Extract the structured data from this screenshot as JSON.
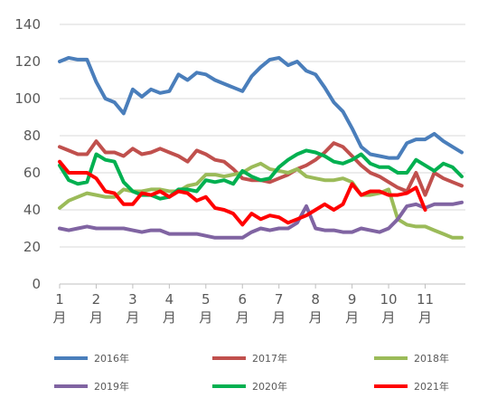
{
  "chart_data": {
    "type": "line",
    "ylim": [
      0,
      140
    ],
    "y_ticks": [
      0,
      20,
      40,
      60,
      80,
      100,
      120,
      140
    ],
    "x_range": [
      1,
      12.1
    ],
    "grid": "horizontal",
    "legend_position": "bottom",
    "month_ticks": [
      {
        "x": 1,
        "label": "1月"
      },
      {
        "x": 2,
        "label": "2月"
      },
      {
        "x": 3,
        "label": "3月"
      },
      {
        "x": 4,
        "label": "4月"
      },
      {
        "x": 5,
        "label": "5月"
      },
      {
        "x": 6,
        "label": "6月"
      },
      {
        "x": 7,
        "label": "7月"
      },
      {
        "x": 8,
        "label": "8月"
      },
      {
        "x": 9,
        "label": "9月"
      },
      {
        "x": 10,
        "label": "10月"
      },
      {
        "x": 11,
        "label": "11月"
      }
    ],
    "series": [
      {
        "name": "2016年",
        "color": "#4a7ebb",
        "x": [
          1.0,
          1.25,
          1.5,
          1.75,
          2.0,
          2.25,
          2.5,
          2.75,
          3.0,
          3.25,
          3.5,
          3.75,
          4.0,
          4.25,
          4.5,
          4.75,
          5.0,
          5.25,
          5.5,
          5.75,
          6.0,
          6.25,
          6.5,
          6.75,
          7.0,
          7.25,
          7.5,
          7.75,
          8.0,
          8.25,
          8.5,
          8.75,
          9.0,
          9.25,
          9.5,
          9.75,
          10.0,
          10.25,
          10.5,
          10.75,
          11.0,
          11.25,
          11.5,
          11.75,
          12.0
        ],
        "y": [
          120,
          122,
          121,
          121,
          109,
          100,
          98,
          92,
          105,
          101,
          105,
          103,
          104,
          113,
          110,
          114,
          113,
          110,
          108,
          106,
          104,
          112,
          117,
          121,
          122,
          118,
          120,
          115,
          113,
          106,
          98,
          93,
          84,
          74,
          70,
          69,
          68,
          68,
          76,
          78,
          78,
          81,
          77,
          74,
          71
        ]
      },
      {
        "name": "2017年",
        "color": "#c0504d",
        "x": [
          1.0,
          1.25,
          1.5,
          1.75,
          2.0,
          2.25,
          2.5,
          2.75,
          3.0,
          3.25,
          3.5,
          3.75,
          4.0,
          4.25,
          4.5,
          4.75,
          5.0,
          5.25,
          5.5,
          5.75,
          6.0,
          6.25,
          6.5,
          6.75,
          7.0,
          7.25,
          7.5,
          7.75,
          8.0,
          8.25,
          8.5,
          8.75,
          9.0,
          9.25,
          9.5,
          9.75,
          10.0,
          10.25,
          10.5,
          10.75,
          11.0,
          11.25,
          11.5,
          11.75,
          12.0
        ],
        "y": [
          74,
          72,
          70,
          70,
          77,
          71,
          71,
          69,
          73,
          70,
          71,
          73,
          71,
          69,
          66,
          72,
          70,
          67,
          66,
          62,
          57,
          56,
          56,
          55,
          57,
          59,
          62,
          64,
          67,
          71,
          76,
          74,
          69,
          64,
          60,
          58,
          55,
          52,
          50,
          60,
          48,
          60,
          57,
          55,
          53
        ]
      },
      {
        "name": "2018年",
        "color": "#9bbb59",
        "x": [
          1.0,
          1.25,
          1.5,
          1.75,
          2.0,
          2.25,
          2.5,
          2.75,
          3.0,
          3.25,
          3.5,
          3.75,
          4.0,
          4.25,
          4.5,
          4.75,
          5.0,
          5.25,
          5.5,
          5.75,
          6.0,
          6.25,
          6.5,
          6.75,
          7.0,
          7.25,
          7.5,
          7.75,
          8.0,
          8.25,
          8.5,
          8.75,
          9.0,
          9.25,
          9.5,
          9.75,
          10.0,
          10.25,
          10.5,
          10.75,
          11.0,
          11.25,
          11.5,
          11.75,
          12.0
        ],
        "y": [
          41,
          45,
          47,
          49,
          48,
          47,
          47,
          51,
          50,
          50,
          51,
          51,
          50,
          50,
          53,
          54,
          59,
          59,
          58,
          59,
          60,
          63,
          65,
          62,
          61,
          60,
          62,
          58,
          57,
          56,
          56,
          57,
          55,
          48,
          48,
          49,
          51,
          35,
          32,
          31,
          31,
          29,
          27,
          25,
          25
        ]
      },
      {
        "name": "2019年",
        "color": "#8064a2",
        "x": [
          1.0,
          1.25,
          1.5,
          1.75,
          2.0,
          2.25,
          2.5,
          2.75,
          3.0,
          3.25,
          3.5,
          3.75,
          4.0,
          4.25,
          4.5,
          4.75,
          5.0,
          5.25,
          5.5,
          5.75,
          6.0,
          6.25,
          6.5,
          6.75,
          7.0,
          7.25,
          7.5,
          7.75,
          8.0,
          8.25,
          8.5,
          8.75,
          9.0,
          9.25,
          9.5,
          9.75,
          10.0,
          10.25,
          10.5,
          10.75,
          11.0,
          11.25,
          11.5,
          11.75,
          12.0
        ],
        "y": [
          30,
          29,
          30,
          31,
          30,
          30,
          30,
          30,
          29,
          28,
          29,
          29,
          27,
          27,
          27,
          27,
          26,
          25,
          25,
          25,
          25,
          28,
          30,
          29,
          30,
          30,
          33,
          42,
          30,
          29,
          29,
          28,
          28,
          30,
          29,
          28,
          30,
          35,
          42,
          43,
          41,
          43,
          43,
          43,
          44
        ]
      },
      {
        "name": "2020年",
        "color": "#00b050",
        "x": [
          1.0,
          1.25,
          1.5,
          1.75,
          2.0,
          2.25,
          2.5,
          2.75,
          3.0,
          3.25,
          3.5,
          3.75,
          4.0,
          4.25,
          4.5,
          4.75,
          5.0,
          5.25,
          5.5,
          5.75,
          6.0,
          6.25,
          6.5,
          6.75,
          7.0,
          7.25,
          7.5,
          7.75,
          8.0,
          8.25,
          8.5,
          8.75,
          9.0,
          9.25,
          9.5,
          9.75,
          10.0,
          10.25,
          10.5,
          10.75,
          11.0,
          11.25,
          11.5,
          11.75,
          12.0
        ],
        "y": [
          64,
          56,
          54,
          55,
          70,
          67,
          66,
          55,
          50,
          48,
          48,
          46,
          47,
          51,
          51,
          50,
          56,
          55,
          56,
          54,
          61,
          58,
          56,
          57,
          63,
          67,
          70,
          72,
          71,
          69,
          66,
          65,
          67,
          70,
          65,
          63,
          63,
          60,
          60,
          67,
          64,
          61,
          65,
          63,
          58
        ]
      },
      {
        "name": "2021年",
        "color": "#ff0000",
        "x": [
          1.0,
          1.25,
          1.5,
          1.75,
          2.0,
          2.25,
          2.5,
          2.75,
          3.0,
          3.25,
          3.5,
          3.75,
          4.0,
          4.25,
          4.5,
          4.75,
          5.0,
          5.25,
          5.5,
          5.75,
          6.0,
          6.25,
          6.5,
          6.75,
          7.0,
          7.25,
          7.5,
          7.75,
          8.0,
          8.25,
          8.5,
          8.75,
          9.0,
          9.25,
          9.5,
          9.75,
          10.0,
          10.25,
          10.5,
          10.75,
          11.0
        ],
        "y": [
          66,
          60,
          60,
          60,
          57,
          50,
          49,
          43,
          43,
          49,
          48,
          50,
          47,
          50,
          49,
          45,
          47,
          41,
          40,
          38,
          32,
          38,
          35,
          37,
          36,
          33,
          35,
          37,
          40,
          43,
          40,
          43,
          54,
          48,
          50,
          50,
          48,
          48,
          49,
          52,
          40
        ]
      }
    ]
  }
}
